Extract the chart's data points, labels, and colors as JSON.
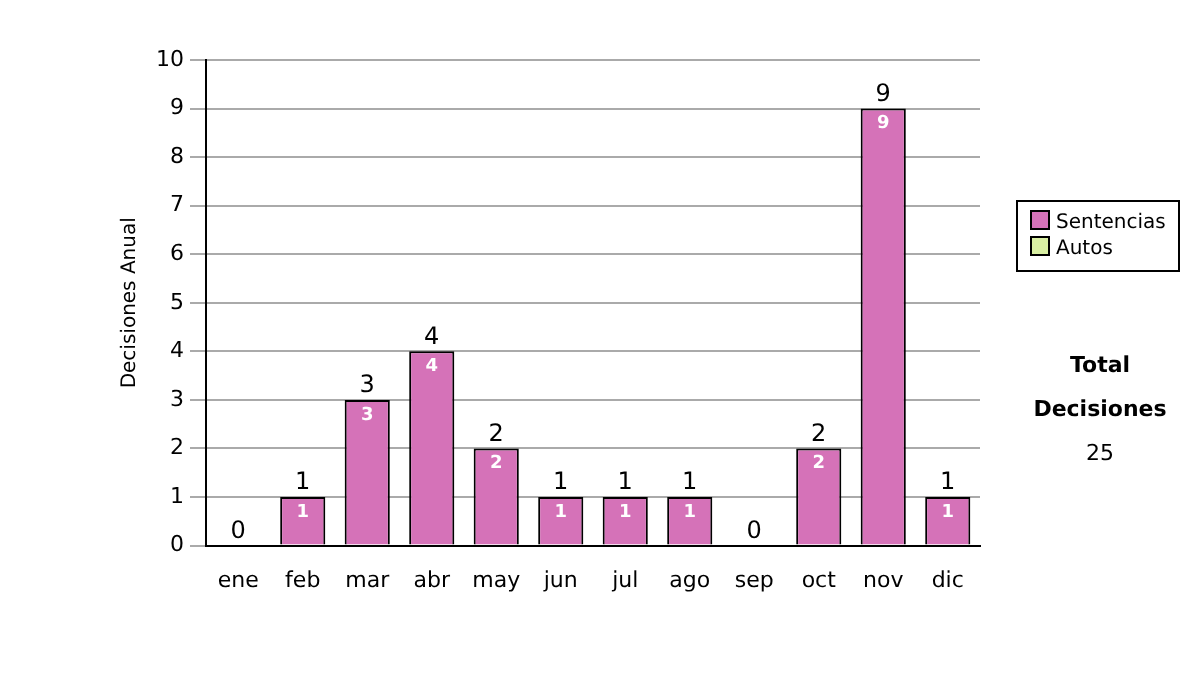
{
  "chart_data": {
    "type": "bar",
    "ylabel": "Decisiones Anual",
    "categories": [
      "ene",
      "feb",
      "mar",
      "abr",
      "may",
      "jun",
      "jul",
      "ago",
      "sep",
      "oct",
      "nov",
      "dic"
    ],
    "series": [
      {
        "name": "Sentencias",
        "color": "#d572b8",
        "values": [
          0,
          1,
          3,
          4,
          2,
          1,
          1,
          1,
          0,
          2,
          9,
          1
        ],
        "value_labels": [
          null,
          "1",
          "3",
          "4",
          "2",
          "1",
          "1",
          "1",
          null,
          "2",
          "9",
          "1"
        ]
      },
      {
        "name": "Autos",
        "color": "#d9f0a3",
        "values": [
          0,
          0,
          0,
          0,
          0,
          0,
          0,
          0,
          0,
          0,
          0,
          0
        ]
      }
    ],
    "stacked": true,
    "totals": [
      "0",
      "1",
      "3",
      "4",
      "2",
      "1",
      "1",
      "1",
      "0",
      "2",
      "9",
      "1"
    ],
    "ylim": [
      0,
      10
    ],
    "yticks": [
      0,
      1,
      2,
      3,
      4,
      5,
      6,
      7,
      8,
      9,
      10
    ],
    "grid": "y",
    "legend": "right",
    "annotations": [
      "Total Decisiones",
      "25"
    ]
  }
}
